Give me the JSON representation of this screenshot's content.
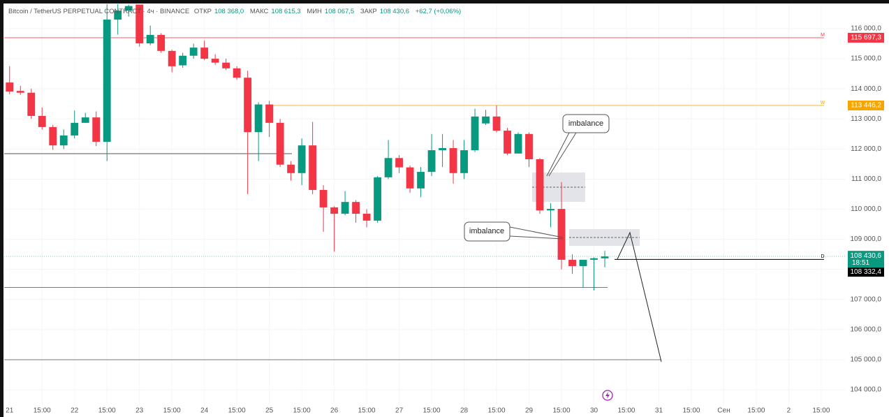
{
  "header": {
    "symbol": "Bitcoin / TetherUS PERPETUAL CONTRACT · 4ч · BINANCE",
    "ohlc": [
      {
        "label": "ОТКР",
        "value": "108 368,0"
      },
      {
        "label": "МАКС",
        "value": "108 615,3"
      },
      {
        "label": "МИН",
        "value": "108 067,5"
      },
      {
        "label": "ЗАКР",
        "value": "108 430,6"
      }
    ],
    "change": "+62,7 (+0,06%)"
  },
  "chart_data": {
    "type": "candlestick",
    "up_color": "#089981",
    "down_color": "#f23645",
    "x": [
      0,
      1,
      2,
      3,
      4,
      5,
      6,
      7,
      8,
      9,
      10,
      11,
      12,
      13,
      14,
      15,
      16,
      17,
      18,
      19,
      20,
      21,
      22,
      23,
      24,
      25,
      26,
      27,
      28,
      29,
      30,
      31,
      32,
      33,
      34,
      35,
      36,
      37,
      38,
      39,
      40,
      41,
      42,
      43,
      44,
      45,
      46,
      47,
      48,
      49,
      50,
      51,
      52,
      53,
      54,
      55
    ],
    "open": [
      114210,
      113930,
      113870,
      113100,
      112730,
      112120,
      112450,
      112870,
      113050,
      112240,
      116300,
      116600,
      116800,
      115510,
      115790,
      115260,
      114780,
      115100,
      115370,
      115000,
      114870,
      114680,
      114370,
      112560,
      113480,
      112870,
      111480,
      111200,
      112120,
      110640,
      110060,
      109850,
      110240,
      109850,
      109620,
      111060,
      111700,
      111390,
      110690,
      111240,
      111960,
      112030,
      111200,
      111960,
      112850,
      113080,
      112610,
      111850,
      112500,
      111660,
      109960,
      110010,
      108320,
      108110,
      108320,
      108368
    ],
    "high": [
      114750,
      114100,
      114000,
      113380,
      112800,
      112650,
      113280,
      113200,
      113250,
      116900,
      117000,
      116800,
      116800,
      116100,
      115850,
      115300,
      115200,
      115500,
      115600,
      115150,
      115000,
      114750,
      114600,
      113550,
      113600,
      113000,
      111600,
      112350,
      112900,
      110800,
      110100,
      110600,
      110300,
      110000,
      111100,
      112300,
      111800,
      111450,
      111400,
      112500,
      112500,
      112300,
      112300,
      113340,
      113300,
      113450,
      112700,
      112550,
      112550,
      111700,
      110200,
      110900,
      108500,
      108320,
      108400,
      108615.3
    ],
    "low": [
      113820,
      113800,
      113000,
      112650,
      111970,
      112000,
      112350,
      112870,
      112100,
      111600,
      115800,
      116400,
      115400,
      115450,
      115200,
      114550,
      114700,
      115000,
      114950,
      114800,
      114620,
      114300,
      110500,
      111600,
      112400,
      111400,
      110950,
      110800,
      110500,
      109250,
      108590,
      109800,
      109550,
      109400,
      109550,
      111000,
      111200,
      110550,
      110400,
      111100,
      111400,
      110850,
      111000,
      111900,
      112800,
      112550,
      111800,
      111850,
      111400,
      109850,
      109400,
      108000,
      107850,
      107400,
      107300,
      108067.5
    ],
    "close": [
      113910,
      113870,
      113100,
      112730,
      112120,
      112450,
      112870,
      113050,
      112240,
      116300,
      116600,
      116750,
      115510,
      115790,
      115260,
      114750,
      115100,
      115370,
      115000,
      114870,
      114680,
      114370,
      112560,
      113480,
      112870,
      111480,
      111200,
      112120,
      110640,
      110060,
      109850,
      110240,
      109850,
      109620,
      111060,
      111700,
      111390,
      110690,
      111240,
      111960,
      112030,
      111200,
      111960,
      113080,
      113080,
      112610,
      111850,
      112500,
      111660,
      109960,
      110010,
      108320,
      108110,
      108320,
      108370,
      108430.6
    ],
    "xlim": [
      -0.5,
      77.2
    ],
    "xticks": [
      {
        "value": 0,
        "label": "21"
      },
      {
        "value": 3,
        "label": "15:00"
      },
      {
        "value": 6,
        "label": "22"
      },
      {
        "value": 9,
        "label": "15:00"
      },
      {
        "value": 12,
        "label": "23"
      },
      {
        "value": 15,
        "label": "15:00"
      },
      {
        "value": 18,
        "label": "24"
      },
      {
        "value": 21,
        "label": "15:00"
      },
      {
        "value": 24,
        "label": "25"
      },
      {
        "value": 27,
        "label": "15:00"
      },
      {
        "value": 30,
        "label": "26"
      },
      {
        "value": 33,
        "label": "15:00"
      },
      {
        "value": 36,
        "label": "27"
      },
      {
        "value": 39,
        "label": "15:00"
      },
      {
        "value": 42,
        "label": "28"
      },
      {
        "value": 45,
        "label": "15:00"
      },
      {
        "value": 48,
        "label": "29"
      },
      {
        "value": 51,
        "label": "15:00"
      },
      {
        "value": 54,
        "label": "30"
      },
      {
        "value": 57,
        "label": "15:00"
      },
      {
        "value": 60,
        "label": "31"
      },
      {
        "value": 63,
        "label": "15:00"
      },
      {
        "value": 66,
        "label": "Сен"
      },
      {
        "value": 69,
        "label": "15:00"
      },
      {
        "value": 72,
        "label": "2"
      },
      {
        "value": 75,
        "label": "15:00"
      }
    ],
    "ylim": [
      103490,
      116812
    ],
    "yticks": [
      {
        "value": 104000,
        "label": "104 000,0"
      },
      {
        "value": 105000,
        "label": "105 000,0"
      },
      {
        "value": 106000,
        "label": "106 000,0"
      },
      {
        "value": 107000,
        "label": "107 000,0"
      },
      {
        "value": 108000,
        "label": "108 000,0"
      },
      {
        "value": 109000,
        "label": "109 000,0"
      },
      {
        "value": 110000,
        "label": "110 000,0"
      },
      {
        "value": 111000,
        "label": "111 000,0"
      },
      {
        "value": 112000,
        "label": "112 000,0"
      },
      {
        "value": 113000,
        "label": "113 000,0"
      },
      {
        "value": 114000,
        "label": "114 000,0"
      },
      {
        "value": 115000,
        "label": "115 000,0"
      },
      {
        "value": 116000,
        "label": "116 000,0"
      }
    ],
    "hlines": [
      {
        "value": 115697.3,
        "label": "115 697,3",
        "tag": "M",
        "color": "#f23645"
      },
      {
        "value": 113446.2,
        "label": "113 446,2",
        "tag": "W",
        "color": "#f7a600"
      },
      {
        "value": 111845,
        "color": "#555555"
      },
      {
        "value": 108332.4,
        "label": "108 332,4",
        "tag": "D",
        "color": "#000000"
      },
      {
        "value": 107400,
        "color": "#777777"
      },
      {
        "value": 105000,
        "color": "#777777"
      }
    ],
    "current_price": {
      "value": 108430.6,
      "label": "108 430,6",
      "countdown": "18:51",
      "color": "#089981"
    },
    "annotations": [
      "imbalance",
      "imbalance"
    ]
  }
}
